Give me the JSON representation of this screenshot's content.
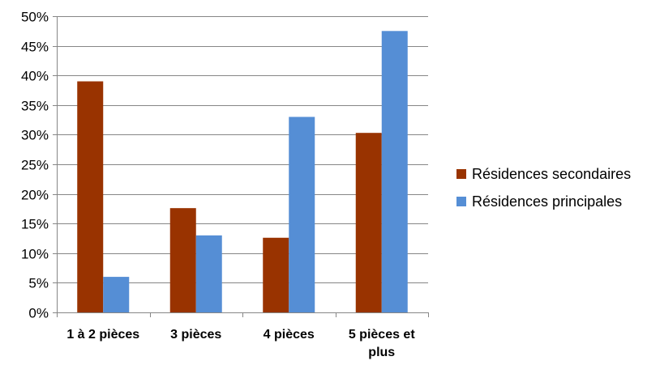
{
  "chart_data": {
    "type": "bar",
    "title": "",
    "xlabel": "",
    "ylabel": "",
    "categories": [
      "1 à 2 pièces",
      "3 pièces",
      "4 pièces",
      "5 pièces et plus"
    ],
    "series": [
      {
        "name": "Résidences secondaires",
        "color": "#993300",
        "values": [
          39,
          17.6,
          12.6,
          30.3
        ]
      },
      {
        "name": "Résidences principales",
        "color": "#558ED5",
        "values": [
          6,
          13,
          33,
          47.5
        ]
      }
    ],
    "ylim": [
      0,
      50
    ],
    "yticks": [
      0,
      5,
      10,
      15,
      20,
      25,
      30,
      35,
      40,
      45,
      50
    ],
    "ytick_labels": [
      "0%",
      "5%",
      "10%",
      "15%",
      "20%",
      "25%",
      "30%",
      "35%",
      "40%",
      "45%",
      "50%"
    ],
    "grid": true,
    "legend_position": "right"
  }
}
